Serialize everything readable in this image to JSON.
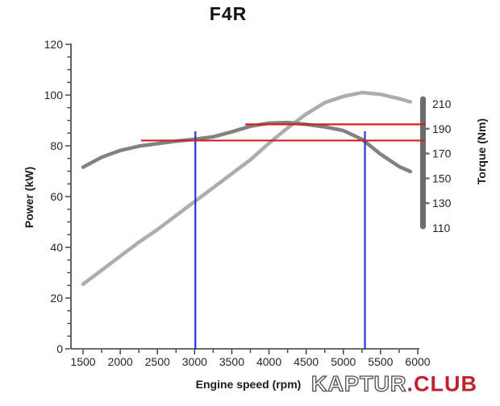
{
  "title": "F4R",
  "watermark": {
    "part1": "KAPTUR",
    "part2": ".CLUB"
  },
  "chart_data": {
    "type": "line",
    "title": "F4R",
    "xlabel": "Engine speed (rpm)",
    "ylabel_left": "Power (kW)",
    "ylabel_right": "Torque (Nm)",
    "xlim": [
      1340,
      6000
    ],
    "x_major_ticks": [
      1500,
      2000,
      2500,
      3000,
      3500,
      4000,
      4500,
      5000,
      5500,
      6000
    ],
    "x_minor_step": 250,
    "ylim_left": [
      0,
      120
    ],
    "y_left_major_ticks": [
      0,
      20,
      40,
      60,
      80,
      100,
      120
    ],
    "y_left_minor_step": 5,
    "ylim_right": [
      110,
      210
    ],
    "y_right_labels": [
      210,
      190,
      170,
      150,
      130,
      110
    ],
    "grid": false,
    "legend": "none",
    "series": [
      {
        "name": "Power",
        "unit": "kW",
        "axis": "left",
        "color": "#acacac",
        "points": [
          [
            1500,
            25.5
          ],
          [
            1750,
            31
          ],
          [
            2000,
            36.5
          ],
          [
            2250,
            42
          ],
          [
            2500,
            47
          ],
          [
            2750,
            52.5
          ],
          [
            3000,
            58
          ],
          [
            3250,
            63.5
          ],
          [
            3500,
            69
          ],
          [
            3750,
            74.5
          ],
          [
            4000,
            81
          ],
          [
            4250,
            87
          ],
          [
            4500,
            92.5
          ],
          [
            4750,
            97
          ],
          [
            5000,
            99.5
          ],
          [
            5250,
            101
          ],
          [
            5500,
            100.3
          ],
          [
            5750,
            98.6
          ],
          [
            5900,
            97.3
          ]
        ]
      },
      {
        "name": "Torque",
        "unit": "Nm",
        "axis": "right",
        "color": "#818181",
        "points": [
          [
            1500,
            159
          ],
          [
            1750,
            167
          ],
          [
            2000,
            172.5
          ],
          [
            2250,
            176
          ],
          [
            2500,
            178
          ],
          [
            2750,
            180
          ],
          [
            3000,
            181.5
          ],
          [
            3250,
            183.5
          ],
          [
            3500,
            187.5
          ],
          [
            3750,
            192
          ],
          [
            4000,
            194.5
          ],
          [
            4250,
            195
          ],
          [
            4500,
            193.5
          ],
          [
            4750,
            191.5
          ],
          [
            5000,
            188.5
          ],
          [
            5250,
            181.5
          ],
          [
            5500,
            169.5
          ],
          [
            5750,
            159.5
          ],
          [
            5900,
            155.5
          ]
        ]
      }
    ],
    "annotations": {
      "red_lines": [
        {
          "torque_nm": 193.5,
          "rpm_from": 3680,
          "rpm_to": 6100
        },
        {
          "torque_nm": 180.5,
          "rpm_from": 2280,
          "rpm_to": 6100
        }
      ],
      "blue_lines": [
        {
          "rpm": 3010
        },
        {
          "rpm": 5290
        }
      ]
    },
    "colors": {
      "annotation_red": "#cf2020",
      "annotation_blue": "#2c35cf",
      "axis": "#3a3a3a",
      "tick_label": "#262626",
      "torque_bar": "#6d6d6d"
    }
  }
}
